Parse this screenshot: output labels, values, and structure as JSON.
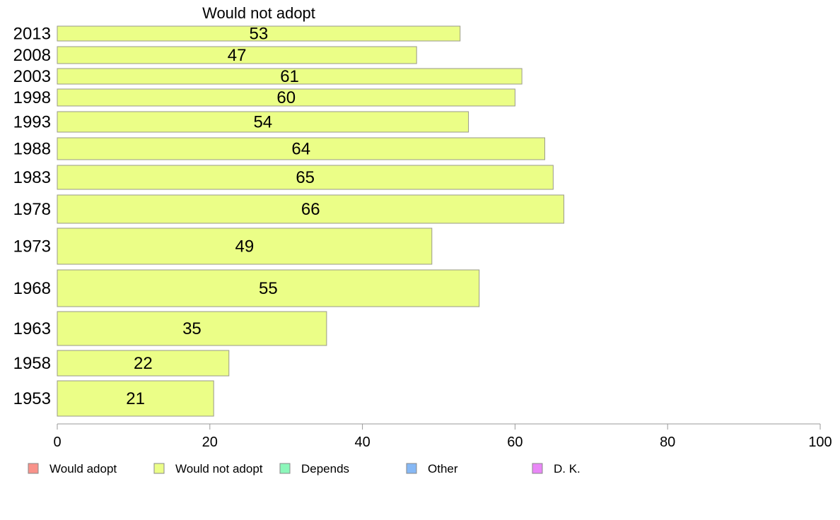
{
  "chart_data": {
    "type": "bar",
    "orientation": "horizontal",
    "title": "Would not adopt",
    "categories": [
      "2013",
      "2008",
      "2003",
      "1998",
      "1993",
      "1988",
      "1983",
      "1978",
      "1973",
      "1968",
      "1963",
      "1958",
      "1953"
    ],
    "series": [
      {
        "name": "Would not adopt",
        "color": "#ebfe87",
        "values": [
          53,
          47,
          61,
          60,
          54,
          64,
          65,
          66,
          49,
          55,
          35,
          22,
          21
        ],
        "bar_extent": [
          52.8,
          47.1,
          60.9,
          60.0,
          53.9,
          63.9,
          65.0,
          66.4,
          49.1,
          55.3,
          35.3,
          22.5,
          20.5
        ]
      }
    ],
    "xlim": [
      0,
      100
    ],
    "xticks": [
      0,
      20,
      40,
      60,
      80,
      100
    ],
    "grid": false,
    "legend": {
      "position": "bottom",
      "items": [
        {
          "label": "Would adopt",
          "color": "#f9928a"
        },
        {
          "label": "Would not adopt",
          "color": "#ebfe87"
        },
        {
          "label": "Depends",
          "color": "#8cf7ba"
        },
        {
          "label": "Other",
          "color": "#86b8f5"
        },
        {
          "label": "D. K.",
          "color": "#e987f7"
        }
      ]
    }
  }
}
